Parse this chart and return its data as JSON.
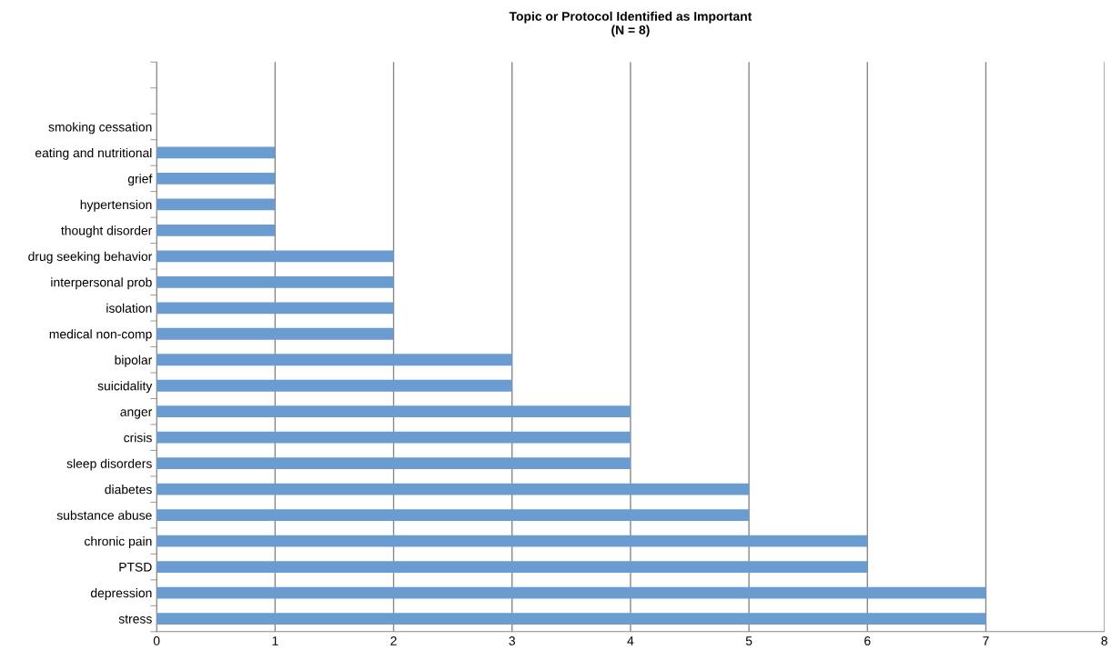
{
  "chart_data": {
    "type": "bar",
    "orientation": "horizontal",
    "title": "Topic or Protocol Identified as Important\n(N = 8)",
    "categories": [
      null,
      null,
      "smoking cessation",
      "eating and nutritional",
      "grief",
      "hypertension",
      "thought disorder",
      "drug seeking behavior",
      "interpersonal prob",
      "isolation",
      "medical non-comp",
      "bipolar",
      "suicidality",
      "anger",
      "crisis",
      "sleep disorders",
      "diabetes",
      "substance abuse",
      "chronic pain",
      "PTSD",
      "depression",
      "stress"
    ],
    "values": [
      0,
      0,
      0,
      1,
      1,
      1,
      1,
      2,
      2,
      2,
      2,
      3,
      3,
      4,
      4,
      4,
      5,
      5,
      6,
      6,
      7,
      7
    ],
    "color": "#6a9bd1",
    "xlim": [
      0,
      8
    ],
    "xticks": [
      0,
      1,
      2,
      3,
      4,
      5,
      6,
      7,
      8
    ],
    "grid": "x"
  }
}
